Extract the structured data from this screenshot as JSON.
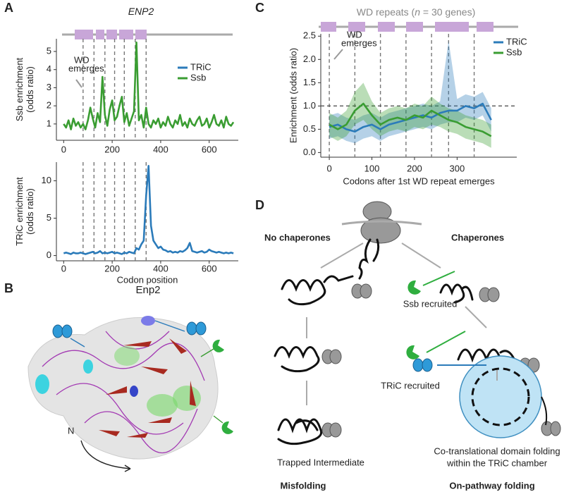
{
  "panel_labels": [
    "A",
    "B",
    "C",
    "D"
  ],
  "chart_data": [
    {
      "type": "line",
      "title": "ENP2",
      "x": [
        0,
        10,
        20,
        30,
        40,
        50,
        60,
        70,
        80,
        90,
        100,
        110,
        120,
        130,
        140,
        150,
        160,
        170,
        180,
        190,
        200,
        210,
        220,
        230,
        240,
        250,
        260,
        270,
        280,
        290,
        300,
        310,
        320,
        330,
        340,
        350,
        360,
        370,
        380,
        390,
        400,
        410,
        420,
        430,
        440,
        450,
        460,
        470,
        480,
        490,
        500,
        510,
        520,
        530,
        540,
        550,
        560,
        570,
        580,
        590,
        600,
        610,
        620,
        630,
        640,
        650,
        660,
        670,
        680,
        690,
        700
      ],
      "series": [
        {
          "name": "Ssb",
          "color": "#3a9d32",
          "values": [
            1.0,
            0.8,
            1.2,
            0.7,
            1.3,
            0.9,
            1.1,
            0.8,
            1.0,
            0.7,
            1.2,
            1.9,
            1.3,
            0.8,
            1.6,
            1.1,
            3.6,
            1.5,
            0.9,
            1.8,
            2.3,
            1.2,
            1.4,
            2.0,
            2.5,
            1.1,
            1.6,
            0.9,
            1.3,
            1.7,
            5.5,
            1.2,
            1.5,
            0.8,
            1.9,
            1.0,
            0.8,
            1.2,
            1.0,
            1.3,
            0.8,
            1.1,
            0.9,
            1.4,
            1.0,
            0.8,
            1.2,
            1.0,
            1.5,
            0.9,
            1.1,
            0.8,
            1.3,
            1.0,
            0.9,
            1.2,
            1.4,
            0.9,
            1.0,
            1.3,
            0.8,
            1.1,
            1.5,
            1.0,
            0.9,
            1.2,
            0.8,
            1.4,
            1.0,
            0.9,
            1.1
          ]
        }
      ],
      "legend": [
        {
          "name": "TRiC",
          "color": "#2b7bba"
        },
        {
          "name": "Ssb",
          "color": "#3a9d32"
        }
      ],
      "xlim": [
        -30,
        720
      ],
      "ylim": [
        0.1,
        5.7
      ],
      "xticks": [
        0,
        200,
        400,
        600
      ],
      "yticks": [
        1,
        2,
        3,
        4,
        5
      ],
      "ylabel": [
        "Ssb enrichment",
        "(odds ratio)"
      ],
      "annotation": [
        "WD",
        "emerges"
      ],
      "wd_boundaries": [
        80,
        125,
        170,
        210,
        250,
        295,
        340
      ]
    },
    {
      "type": "line",
      "x": [
        0,
        10,
        20,
        30,
        40,
        50,
        60,
        70,
        80,
        90,
        100,
        110,
        120,
        130,
        140,
        150,
        160,
        170,
        180,
        190,
        200,
        210,
        220,
        230,
        240,
        250,
        260,
        270,
        280,
        290,
        300,
        310,
        320,
        330,
        340,
        350,
        360,
        370,
        380,
        390,
        400,
        410,
        420,
        430,
        440,
        450,
        460,
        470,
        480,
        490,
        500,
        510,
        520,
        530,
        540,
        550,
        560,
        570,
        580,
        590,
        600,
        610,
        620,
        630,
        640,
        650,
        660,
        670,
        680,
        690,
        700
      ],
      "series": [
        {
          "name": "TRiC",
          "color": "#2b7bba",
          "values": [
            0.3,
            0.4,
            0.3,
            0.2,
            0.4,
            0.3,
            0.3,
            0.4,
            0.3,
            0.2,
            0.3,
            0.4,
            0.5,
            0.3,
            0.4,
            0.6,
            0.3,
            0.4,
            0.3,
            0.4,
            0.5,
            0.3,
            0.4,
            0.3,
            0.2,
            0.4,
            0.3,
            0.5,
            0.4,
            0.3,
            1.0,
            0.8,
            1.5,
            2.0,
            8.0,
            12.0,
            4.0,
            2.0,
            1.5,
            1.0,
            1.2,
            0.8,
            0.7,
            0.5,
            0.6,
            0.4,
            0.5,
            0.4,
            0.6,
            0.5,
            0.7,
            1.0,
            1.7,
            0.6,
            0.5,
            0.4,
            0.5,
            0.6,
            0.4,
            0.5,
            0.8,
            0.6,
            0.5,
            0.4,
            0.5,
            0.4,
            0.3,
            0.4,
            0.3,
            0.4,
            0.3
          ]
        }
      ],
      "xlim": [
        -30,
        720
      ],
      "ylim": [
        -0.7,
        12.5
      ],
      "xticks": [
        0,
        200,
        400,
        600
      ],
      "yticks": [
        0,
        5,
        10
      ],
      "xlabel": "Codon position",
      "ylabel": [
        "TRiC enrichment",
        "(odds ratio)"
      ],
      "wd_boundaries": [
        80,
        125,
        170,
        210,
        250,
        295,
        340
      ]
    },
    {
      "type": "line",
      "title": [
        "WD repeats (",
        "n",
        " = 30 genes)"
      ],
      "x": [
        0,
        20,
        40,
        60,
        80,
        100,
        120,
        140,
        160,
        180,
        200,
        220,
        240,
        260,
        280,
        300,
        320,
        340,
        360,
        380
      ],
      "series": [
        {
          "name": "TRiC",
          "color": "#2b7bba",
          "values": [
            0.55,
            0.6,
            0.5,
            0.45,
            0.55,
            0.6,
            0.5,
            0.6,
            0.65,
            0.7,
            0.75,
            0.8,
            0.75,
            0.85,
            0.9,
            0.9,
            1.0,
            0.95,
            1.05,
            0.7
          ],
          "lower": [
            0.3,
            0.35,
            0.25,
            0.2,
            0.3,
            0.35,
            0.25,
            0.35,
            0.4,
            0.45,
            0.5,
            0.55,
            0.5,
            0.6,
            0.65,
            0.65,
            0.75,
            0.7,
            0.8,
            0.45
          ],
          "upper": [
            0.8,
            0.85,
            0.75,
            0.7,
            0.8,
            0.85,
            0.75,
            0.85,
            0.9,
            0.95,
            1.0,
            1.05,
            1.0,
            1.1,
            2.4,
            1.15,
            1.25,
            1.2,
            1.3,
            0.95
          ]
        },
        {
          "name": "Ssb",
          "color": "#3a9d32",
          "values": [
            0.6,
            0.5,
            0.6,
            0.9,
            1.05,
            0.8,
            0.6,
            0.7,
            0.75,
            0.7,
            0.8,
            0.75,
            0.9,
            0.8,
            0.7,
            0.65,
            0.55,
            0.5,
            0.45,
            0.35
          ],
          "lower": [
            0.35,
            0.25,
            0.35,
            0.6,
            0.7,
            0.5,
            0.35,
            0.45,
            0.5,
            0.45,
            0.55,
            0.5,
            0.6,
            0.55,
            0.45,
            0.4,
            0.3,
            0.25,
            0.2,
            0.1
          ],
          "upper": [
            0.85,
            0.75,
            0.9,
            1.3,
            1.5,
            1.1,
            0.85,
            0.95,
            1.0,
            0.95,
            1.05,
            1.0,
            1.2,
            1.05,
            0.95,
            0.9,
            0.8,
            0.75,
            0.7,
            0.6
          ]
        }
      ],
      "xlim": [
        -20,
        440
      ],
      "ylim": [
        -0.1,
        2.55
      ],
      "xticks": [
        0,
        100,
        200,
        300
      ],
      "yticks": [
        {
          "value": 0,
          "label": "0.0"
        },
        0.5,
        {
          "value": 1,
          "label": "1.0"
        },
        1.5,
        {
          "value": 2,
          "label": "2.0"
        },
        2.5
      ],
      "reference_line": 1,
      "xlabel": "Codons after 1st WD repeat emerges",
      "ylabel": [
        "Enrichment (odds ratio)"
      ],
      "annotation": [
        "WD",
        "emerges"
      ],
      "wd_boundaries": [
        0,
        60,
        120,
        180,
        240,
        280,
        340
      ]
    }
  ],
  "structure": {
    "title": "Enp2",
    "n_label": "N"
  },
  "pathway": {
    "left_title": "No chaperones",
    "right_title": "Chaperones",
    "ssb": "Ssb recruited",
    "tric": "TRiC recruited",
    "trapped": "Trapped Intermediate",
    "cotrans": [
      "Co-translational domain folding",
      "within the TRiC chamber"
    ],
    "misfolding": "Misfolding",
    "onpathway": "On-pathway folding"
  }
}
